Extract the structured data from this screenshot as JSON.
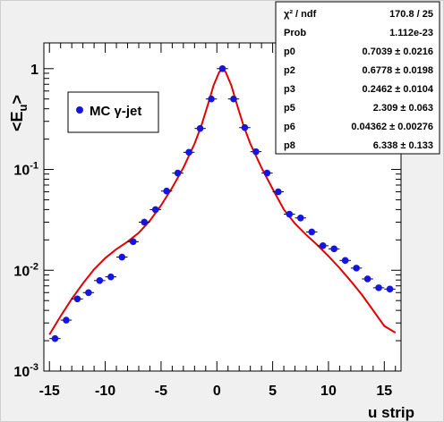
{
  "chart_data": {
    "type": "scatter",
    "title": "",
    "xlabel": "u strip",
    "ylabel": "<E_u>",
    "xscale": "linear",
    "yscale": "log",
    "xlim": [
      -15.5,
      16.5
    ],
    "ylim": [
      0.001,
      1.8
    ],
    "grid": false,
    "x_ticks": [
      -15,
      -10,
      -5,
      0,
      5,
      10,
      15
    ],
    "y_ticks": [
      {
        "value": 0.001,
        "base": "10",
        "exp": "-3"
      },
      {
        "value": 0.01,
        "base": "10",
        "exp": "-2"
      },
      {
        "value": 0.1,
        "base": "10",
        "exp": "-1"
      },
      {
        "value": 1,
        "base": "1",
        "exp": ""
      }
    ],
    "legend": {
      "position": "upper-left",
      "entries": [
        {
          "label": "MC γ-jet",
          "marker": "circle",
          "color": "#1515e0"
        }
      ]
    },
    "series": [
      {
        "name": "MC γ-jet",
        "kind": "points",
        "color": "#1515e0",
        "x_error": 0.5,
        "points": [
          [
            -14.5,
            0.0021
          ],
          [
            -13.5,
            0.0032
          ],
          [
            -12.5,
            0.0052
          ],
          [
            -11.5,
            0.006
          ],
          [
            -10.5,
            0.0079
          ],
          [
            -9.5,
            0.0086
          ],
          [
            -8.5,
            0.0135
          ],
          [
            -7.5,
            0.0192
          ],
          [
            -6.5,
            0.03
          ],
          [
            -5.5,
            0.04
          ],
          [
            -4.5,
            0.061
          ],
          [
            -3.5,
            0.092
          ],
          [
            -2.5,
            0.148
          ],
          [
            -1.5,
            0.255
          ],
          [
            -0.5,
            0.5
          ],
          [
            0.5,
            1.0
          ],
          [
            1.5,
            0.5
          ],
          [
            2.5,
            0.26
          ],
          [
            3.5,
            0.15
          ],
          [
            4.5,
            0.092
          ],
          [
            5.5,
            0.06
          ],
          [
            6.5,
            0.036
          ],
          [
            7.5,
            0.033
          ],
          [
            8.5,
            0.024
          ],
          [
            9.5,
            0.0175
          ],
          [
            10.5,
            0.0163
          ],
          [
            11.5,
            0.0125
          ],
          [
            12.5,
            0.0105
          ],
          [
            13.5,
            0.0082
          ],
          [
            14.5,
            0.0067
          ],
          [
            15.5,
            0.0065
          ]
        ]
      },
      {
        "name": "",
        "kind": "line",
        "color": "#e00000",
        "points": [
          [
            -15,
            0.0023
          ],
          [
            -14,
            0.0035
          ],
          [
            -13,
            0.0052
          ],
          [
            -12,
            0.0074
          ],
          [
            -11,
            0.0102
          ],
          [
            -10,
            0.0132
          ],
          [
            -9,
            0.0162
          ],
          [
            -8,
            0.0192
          ],
          [
            -7,
            0.0235
          ],
          [
            -6,
            0.031
          ],
          [
            -5,
            0.044
          ],
          [
            -4,
            0.066
          ],
          [
            -3,
            0.104
          ],
          [
            -2,
            0.18
          ],
          [
            -1.4,
            0.27
          ],
          [
            -0.8,
            0.44
          ],
          [
            -0.3,
            0.68
          ],
          [
            0.2,
            0.92
          ],
          [
            0.5,
            1.0
          ],
          [
            0.8,
            0.92
          ],
          [
            1.3,
            0.68
          ],
          [
            1.8,
            0.44
          ],
          [
            2.4,
            0.27
          ],
          [
            3,
            0.18
          ],
          [
            4,
            0.104
          ],
          [
            5,
            0.064
          ],
          [
            6,
            0.04
          ],
          [
            7,
            0.029
          ],
          [
            8,
            0.0225
          ],
          [
            9,
            0.0178
          ],
          [
            10,
            0.0138
          ],
          [
            11,
            0.0105
          ],
          [
            12,
            0.0078
          ],
          [
            13,
            0.0057
          ],
          [
            14,
            0.004
          ],
          [
            15,
            0.0028
          ],
          [
            16,
            0.0024
          ]
        ]
      }
    ]
  },
  "stats": {
    "rows": [
      {
        "label": "χ² / ndf",
        "value": "170.8 / 25"
      },
      {
        "label": "Prob",
        "value": "1.112e-23"
      },
      {
        "label": "p0",
        "value": "0.7039 ± 0.0216"
      },
      {
        "label": "p2",
        "value": "0.6778 ± 0.0198"
      },
      {
        "label": "p3",
        "value": "0.2462 ± 0.0104"
      },
      {
        "label": "p5",
        "value": "2.309 ± 0.063"
      },
      {
        "label": "p6",
        "value": "0.04362 ± 0.00276"
      },
      {
        "label": "p8",
        "value": "6.338 ± 0.133"
      }
    ]
  }
}
